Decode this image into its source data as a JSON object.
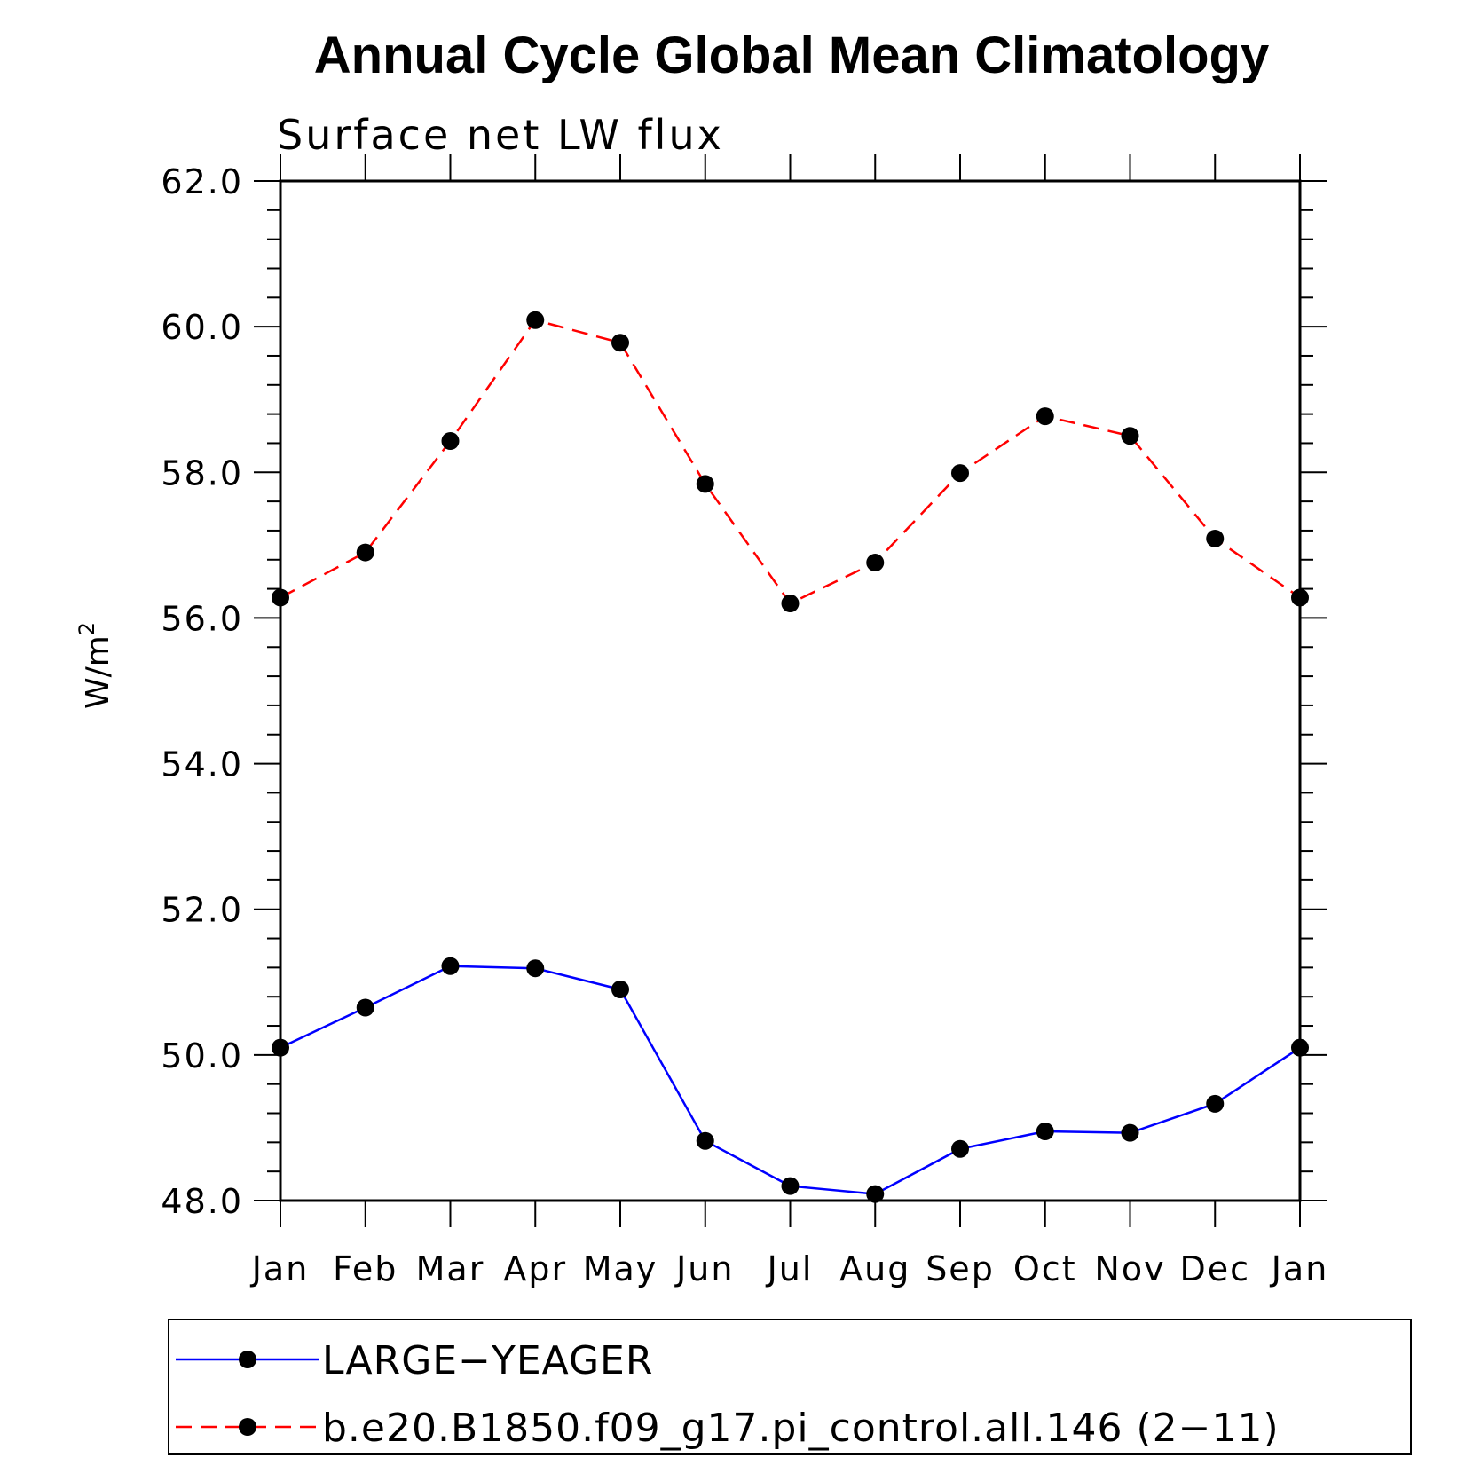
{
  "chart_data": {
    "type": "line",
    "title": "Annual Cycle Global Mean Climatology",
    "subtitle": "Surface net LW flux",
    "ylabel_base": "W/m",
    "ylabel_sup": "2",
    "xlabel": "",
    "categories": [
      "Jan",
      "Feb",
      "Mar",
      "Apr",
      "May",
      "Jun",
      "Jul",
      "Aug",
      "Sep",
      "Oct",
      "Nov",
      "Dec",
      "Jan"
    ],
    "ylim": [
      48.0,
      62.0
    ],
    "yticks": [
      "48.0",
      "50.0",
      "52.0",
      "54.0",
      "56.0",
      "58.0",
      "60.0",
      "62.0"
    ],
    "series": [
      {
        "name": "LARGE−YEAGER",
        "color": "#0000ff",
        "dashed": false,
        "values": [
          50.1,
          50.65,
          51.22,
          51.19,
          50.9,
          48.82,
          48.2,
          48.09,
          48.71,
          48.95,
          48.93,
          49.33,
          50.1
        ]
      },
      {
        "name": "b.e20.B1850.f09_g17.pi_control.all.146 (2−11)",
        "color": "#ff0000",
        "dashed": true,
        "values": [
          56.28,
          56.9,
          58.43,
          60.09,
          59.78,
          57.84,
          56.2,
          56.76,
          57.99,
          58.77,
          58.5,
          57.09,
          56.28
        ]
      }
    ],
    "legend_position": "bottom"
  }
}
